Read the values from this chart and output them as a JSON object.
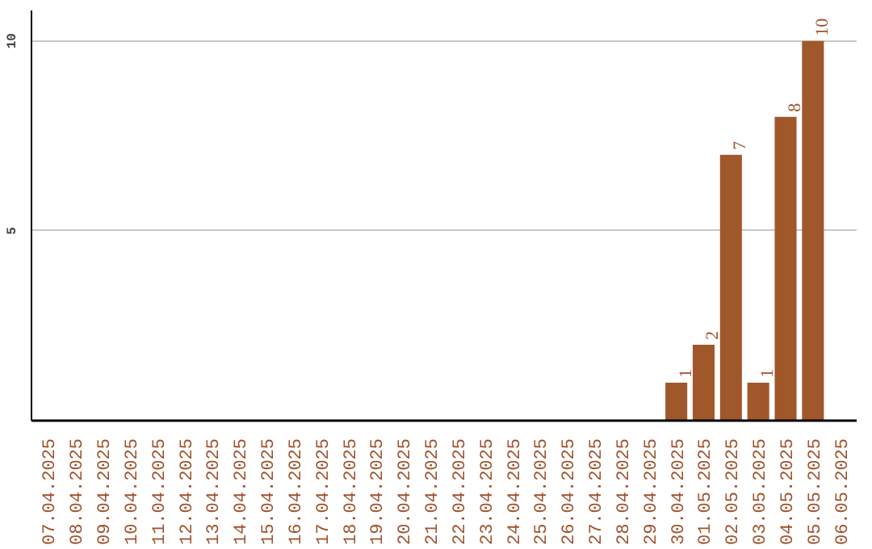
{
  "chart_data": {
    "type": "bar",
    "categories": [
      "07.04.2025",
      "08.04.2025",
      "09.04.2025",
      "10.04.2025",
      "11.04.2025",
      "12.04.2025",
      "13.04.2025",
      "14.04.2025",
      "15.04.2025",
      "16.04.2025",
      "17.04.2025",
      "18.04.2025",
      "19.04.2025",
      "20.04.2025",
      "21.04.2025",
      "22.04.2025",
      "23.04.2025",
      "24.04.2025",
      "25.04.2025",
      "26.04.2025",
      "27.04.2025",
      "28.04.2025",
      "29.04.2025",
      "30.04.2025",
      "01.05.2025",
      "02.05.2025",
      "03.05.2025",
      "04.05.2025",
      "05.05.2025",
      "06.05.2025"
    ],
    "values": [
      0,
      0,
      0,
      0,
      0,
      0,
      0,
      0,
      0,
      0,
      0,
      0,
      0,
      0,
      0,
      0,
      0,
      0,
      0,
      0,
      0,
      0,
      0,
      1,
      2,
      7,
      1,
      8,
      10,
      0
    ],
    "value_labels": [
      null,
      null,
      null,
      null,
      null,
      null,
      null,
      null,
      null,
      null,
      null,
      null,
      null,
      null,
      null,
      null,
      null,
      null,
      null,
      null,
      null,
      null,
      null,
      "1",
      "2",
      "7",
      "1",
      "8",
      "10",
      null
    ],
    "color": "#a0572a",
    "ylim": [
      0,
      10.8
    ],
    "yticks": [
      5,
      10
    ],
    "grid": "y"
  }
}
